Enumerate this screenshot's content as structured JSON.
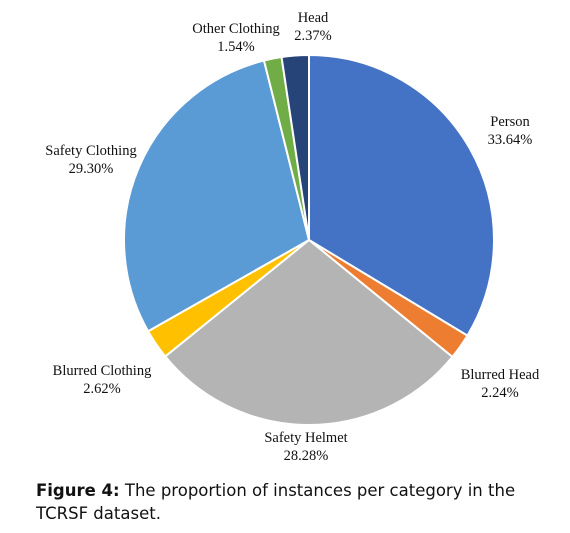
{
  "chart_data": {
    "type": "pie",
    "slices": [
      {
        "label": "Person",
        "value": 33.64,
        "percent_text": "33.64%",
        "color": "#4472C4"
      },
      {
        "label": "Blurred Head",
        "value": 2.24,
        "percent_text": "2.24%",
        "color": "#ED7D31"
      },
      {
        "label": "Safety Helmet",
        "value": 28.28,
        "percent_text": "28.28%",
        "color": "#B4B4B4"
      },
      {
        "label": "Blurred Clothing",
        "value": 2.62,
        "percent_text": "2.62%",
        "color": "#FFC000"
      },
      {
        "label": "Safety Clothing",
        "value": 29.3,
        "percent_text": "29.30%",
        "color": "#5B9BD5"
      },
      {
        "label": "Other Clothing",
        "value": 1.54,
        "percent_text": "1.54%",
        "color": "#70AD47"
      },
      {
        "label": "Head",
        "value": 2.37,
        "percent_text": "2.37%",
        "color": "#264478"
      }
    ],
    "start_angle": "12 o'clock",
    "direction": "clockwise",
    "legend": "none"
  },
  "caption": {
    "figure_number": "Figure 4:",
    "text": "The proportion of instances per category in the TCRSF dataset."
  }
}
